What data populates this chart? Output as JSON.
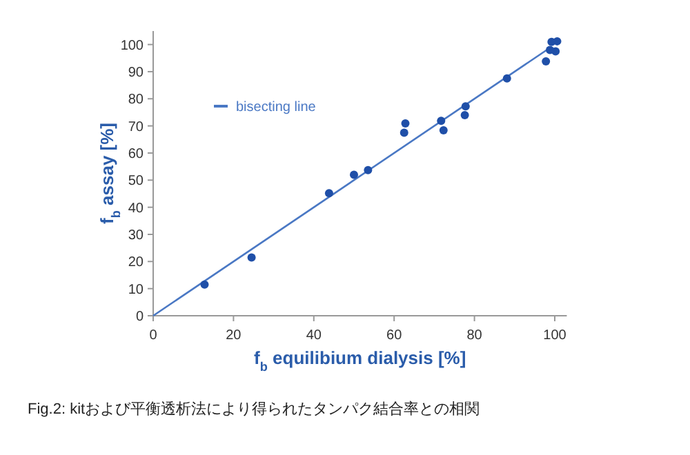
{
  "chart_data": {
    "type": "scatter",
    "xlabel": "f$_{b}$ equilibium dialysis [%]",
    "ylabel": "f$_{b}$ assay [%]",
    "annotations": [
      "Fig.2: kitおよび平衡透析法により得られたタンパク結合率との相関"
    ],
    "xlim": [
      0,
      103
    ],
    "ylim": [
      0,
      105
    ],
    "xticks": [
      0,
      20,
      40,
      60,
      80,
      100
    ],
    "yticks": [
      0,
      10,
      20,
      30,
      40,
      50,
      60,
      70,
      80,
      90,
      100
    ],
    "legend": "top left",
    "series": [
      {
        "type": "line",
        "name": "bisecting line",
        "color": "#4a78c4",
        "x": [
          0,
          98
        ],
        "values": [
          0,
          98
        ]
      },
      {
        "marker": "circle",
        "color": "#1f4fa8",
        "x": [
          12.8,
          24.5,
          43.8,
          50,
          53.5,
          62.8,
          62.5,
          71.7,
          72.3,
          77.8,
          77.6,
          88.1,
          97.8,
          99.2,
          100.6,
          100.2,
          98.8
        ],
        "values": [
          11.5,
          21.5,
          45.2,
          52,
          53.7,
          70.9,
          67.5,
          71.9,
          68.4,
          77.2,
          74,
          87.5,
          93.8,
          101,
          101.2,
          97.5,
          98
        ]
      }
    ]
  }
}
